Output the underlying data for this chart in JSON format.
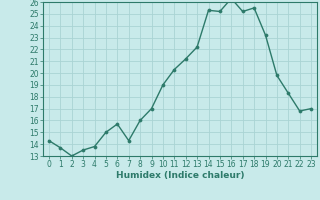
{
  "x": [
    0,
    1,
    2,
    3,
    4,
    5,
    6,
    7,
    8,
    9,
    10,
    11,
    12,
    13,
    14,
    15,
    16,
    17,
    18,
    19,
    20,
    21,
    22,
    23
  ],
  "y": [
    14.3,
    13.7,
    13.0,
    13.5,
    13.8,
    15.0,
    15.7,
    14.3,
    16.0,
    17.0,
    19.0,
    20.3,
    21.2,
    22.2,
    25.3,
    25.2,
    26.3,
    25.2,
    25.5,
    23.2,
    19.8,
    18.3,
    16.8,
    17.0
  ],
  "line_color": "#2d7a6a",
  "marker": "o",
  "marker_size": 2.2,
  "bg_color": "#c8eaea",
  "grid_color": "#aad4d4",
  "xlabel": "Humidex (Indice chaleur)",
  "ylim": [
    13,
    26
  ],
  "xlim": [
    -0.5,
    23.5
  ],
  "yticks": [
    13,
    14,
    15,
    16,
    17,
    18,
    19,
    20,
    21,
    22,
    23,
    24,
    25,
    26
  ],
  "xticks": [
    0,
    1,
    2,
    3,
    4,
    5,
    6,
    7,
    8,
    9,
    10,
    11,
    12,
    13,
    14,
    15,
    16,
    17,
    18,
    19,
    20,
    21,
    22,
    23
  ],
  "tick_color": "#2d7a6a",
  "label_fontsize": 6.5,
  "tick_fontsize": 5.5,
  "linewidth": 1.0
}
